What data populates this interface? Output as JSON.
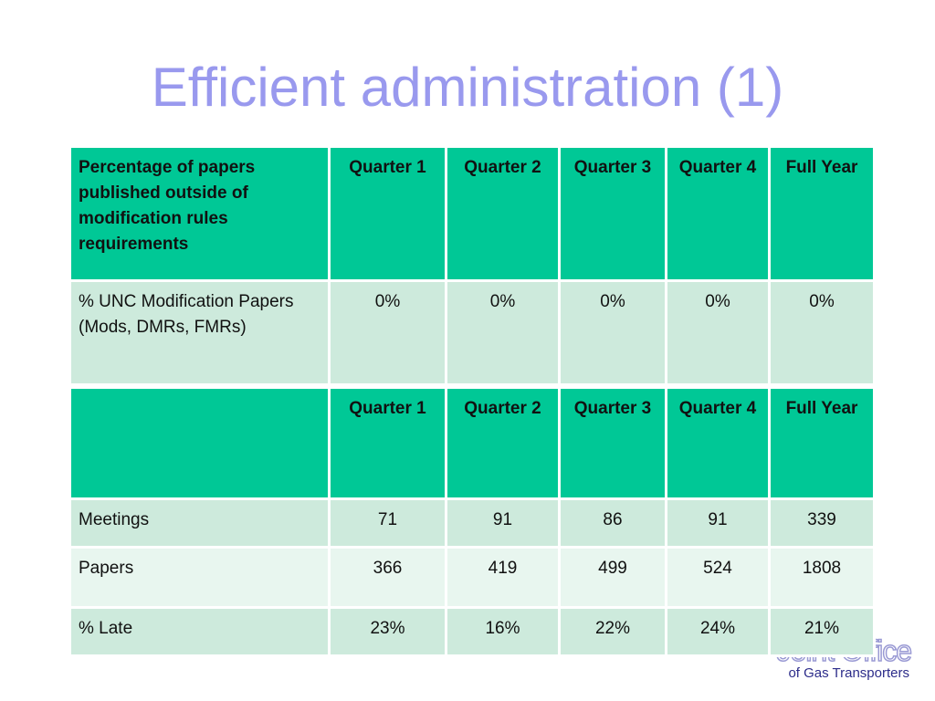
{
  "slide": {
    "title": "Efficient administration (1)"
  },
  "table1": {
    "header": {
      "label": "Percentage of papers published outside of modification rules requirements",
      "q1": "Quarter 1",
      "q2": "Quarter 2",
      "q3": "Quarter 3",
      "q4": "Quarter 4",
      "fy": "Full Year"
    },
    "rows": [
      {
        "label": "% UNC Modification Papers (Mods, DMRs, FMRs)",
        "q1": "0%",
        "q2": "0%",
        "q3": "0%",
        "q4": "0%",
        "fy": "0%"
      }
    ]
  },
  "table2": {
    "header": {
      "label": "",
      "q1": "Quarter 1",
      "q2": "Quarter 2",
      "q3": "Quarter 3",
      "q4": "Quarter 4",
      "fy": "Full Year"
    },
    "rows": [
      {
        "label": "Meetings",
        "q1": "71",
        "q2": "91",
        "q3": "86",
        "q4": "91",
        "fy": "339"
      },
      {
        "label": "Papers",
        "q1": "366",
        "q2": "419",
        "q3": "499",
        "q4": "524",
        "fy": "1808"
      },
      {
        "label": "% Late",
        "q1": "23%",
        "q2": "16%",
        "q3": "22%",
        "q4": "24%",
        "fy": "21%"
      }
    ]
  },
  "logo": {
    "main": "Joint Office",
    "sub": "of Gas Transporters"
  },
  "colors": {
    "title": "#9999ee",
    "header_bg": "#00c896",
    "row_dark": "#cdeadc",
    "row_light": "#e8f6ef",
    "logo_text": "#2c2c8a"
  }
}
